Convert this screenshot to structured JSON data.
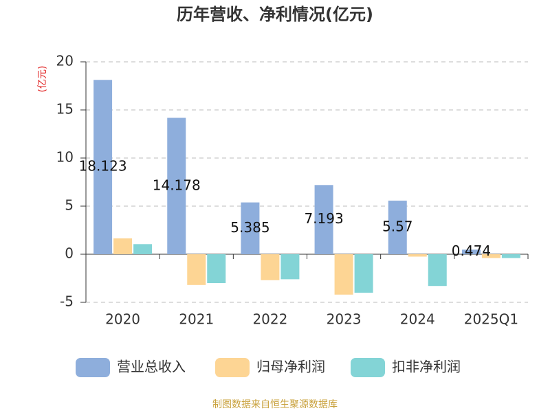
{
  "chart_data": {
    "type": "bar",
    "title": "历年营收、净利情况(亿元)",
    "y_label": "(亿元)",
    "categories": [
      "2020",
      "2021",
      "2022",
      "2023",
      "2024",
      "2025Q1"
    ],
    "series": [
      {
        "name": "营业总收入",
        "color": "#8eaedc",
        "show_values": true,
        "values": [
          18.123,
          14.178,
          5.385,
          7.193,
          5.57,
          0.474
        ]
      },
      {
        "name": "归母净利润",
        "color": "#fdd594",
        "values": [
          1.65,
          -3.2,
          -2.7,
          -4.2,
          -0.25,
          -0.4
        ]
      },
      {
        "name": "扣非净利润",
        "color": "#83d4d6",
        "values": [
          1.05,
          -3.0,
          -2.6,
          -4.0,
          -3.3,
          -0.4
        ]
      }
    ],
    "ylim": [
      -5,
      20
    ],
    "yticks": [
      -5,
      0,
      5,
      10,
      15,
      20
    ],
    "grid": true,
    "legend": "bottom",
    "source": "制图数据来自恒生聚源数据库"
  }
}
